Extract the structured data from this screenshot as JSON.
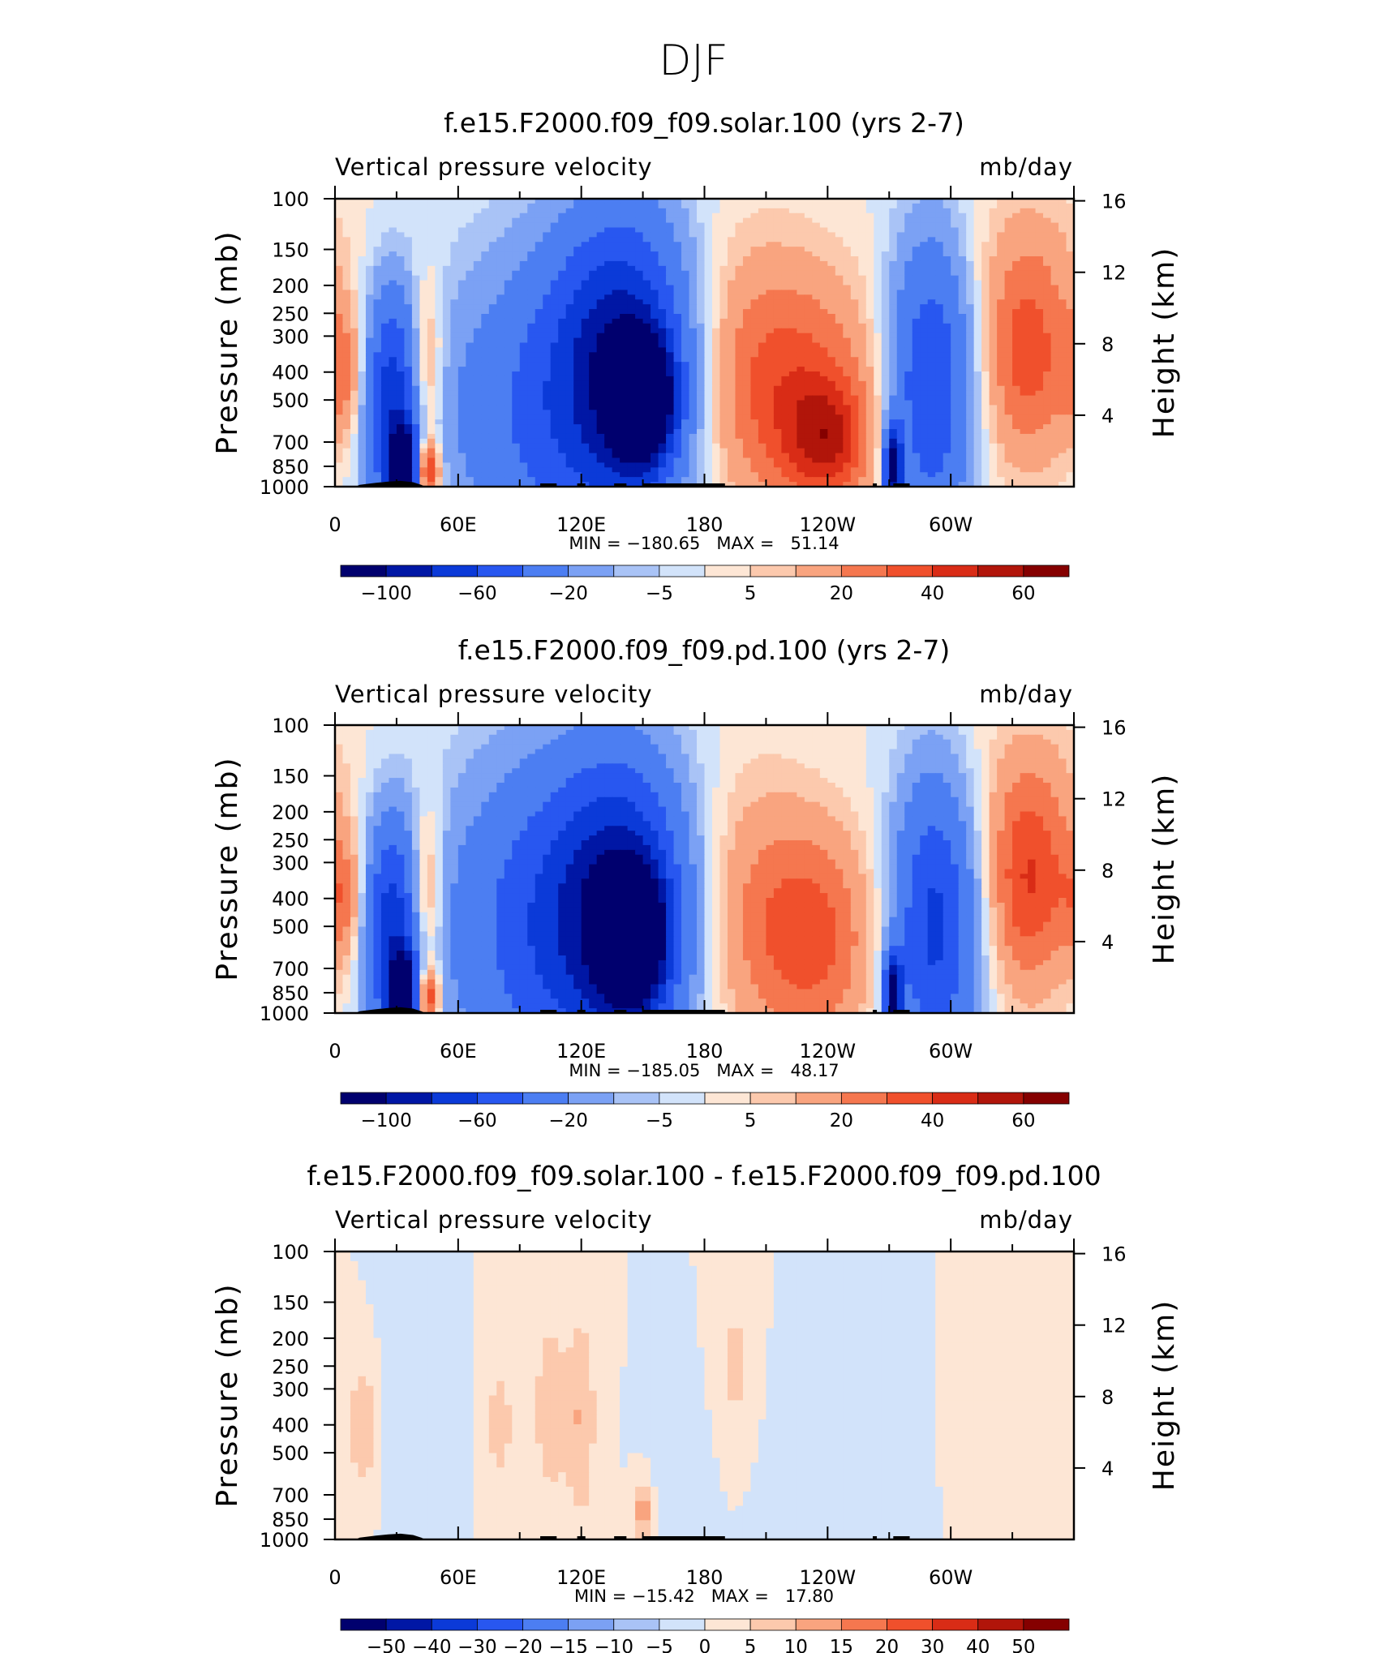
{
  "figure_title": "DJF",
  "chart_data": [
    {
      "type": "heatmap",
      "title": "f.e15.F2000.f09_f09.solar.100 (yrs 2-7)",
      "left_label": "Vertical pressure velocity",
      "right_label": "mb/day",
      "ylabel": "Pressure (mb)",
      "ylabel_right": "Height (km)",
      "x_ticks": [
        "0",
        "60E",
        "120E",
        "180",
        "120W",
        "60W"
      ],
      "y_ticks": [
        "100",
        "150",
        "200",
        "250",
        "300",
        "400",
        "500",
        "700",
        "850",
        "1000"
      ],
      "y2_ticks": [
        "16",
        "12",
        "8",
        "4"
      ],
      "stats": "MIN = −180.65   MAX =   51.14",
      "colorbar_labels": [
        "−100",
        "−60",
        "−20",
        "−5",
        "5",
        "20",
        "40",
        "60"
      ],
      "features": [
        {
          "lon": 5,
          "p": 400,
          "v": 25,
          "w": 8,
          "h": 0.35
        },
        {
          "lon": 28,
          "p": 500,
          "v": -70,
          "w": 10,
          "h": 0.55
        },
        {
          "lon": 33,
          "p": 850,
          "v": -120,
          "w": 5,
          "h": 0.2
        },
        {
          "lon": 44,
          "p": 400,
          "v": 30,
          "w": 6,
          "h": 0.45
        },
        {
          "lon": 45,
          "p": 880,
          "v": 55,
          "w": 4,
          "h": 0.15
        },
        {
          "lon": 60,
          "p": 500,
          "v": -4,
          "w": 10,
          "h": 0.6
        },
        {
          "lon": 100,
          "p": 550,
          "v": -40,
          "w": 30,
          "h": 0.8
        },
        {
          "lon": 140,
          "p": 380,
          "v": -90,
          "w": 22,
          "h": 0.75
        },
        {
          "lon": 150,
          "p": 500,
          "v": -130,
          "w": 10,
          "h": 0.3
        },
        {
          "lon": 200,
          "p": 400,
          "v": 15,
          "w": 20,
          "h": 0.7
        },
        {
          "lon": 230,
          "p": 450,
          "v": 30,
          "w": 25,
          "h": 0.6
        },
        {
          "lon": 240,
          "p": 700,
          "v": 35,
          "w": 15,
          "h": 0.3
        },
        {
          "lon": 290,
          "p": 450,
          "v": -60,
          "w": 14,
          "h": 0.75
        },
        {
          "lon": 272,
          "p": 850,
          "v": -110,
          "w": 3,
          "h": 0.2
        },
        {
          "lon": 337,
          "p": 350,
          "v": 35,
          "w": 15,
          "h": 0.55
        },
        {
          "lon": 340,
          "p": 150,
          "v": 6,
          "w": 25,
          "h": 0.4
        }
      ]
    },
    {
      "type": "heatmap",
      "title": "f.e15.F2000.f09_f09.pd.100 (yrs 2-7)",
      "left_label": "Vertical pressure velocity",
      "right_label": "mb/day",
      "ylabel": "Pressure (mb)",
      "ylabel_right": "Height (km)",
      "x_ticks": [
        "0",
        "60E",
        "120E",
        "180",
        "120W",
        "60W"
      ],
      "y_ticks": [
        "100",
        "150",
        "200",
        "250",
        "300",
        "400",
        "500",
        "700",
        "850",
        "1000"
      ],
      "y2_ticks": [
        "16",
        "12",
        "8",
        "4"
      ],
      "stats": "MIN = −185.05   MAX =   48.17",
      "colorbar_labels": [
        "−100",
        "−60",
        "−20",
        "−5",
        "5",
        "20",
        "40",
        "60"
      ],
      "features": [
        {
          "lon": 5,
          "p": 400,
          "v": 25,
          "w": 8,
          "h": 0.35
        },
        {
          "lon": 28,
          "p": 500,
          "v": -70,
          "w": 10,
          "h": 0.55
        },
        {
          "lon": 33,
          "p": 850,
          "v": -120,
          "w": 5,
          "h": 0.2
        },
        {
          "lon": 44,
          "p": 400,
          "v": 32,
          "w": 6,
          "h": 0.45
        },
        {
          "lon": 45,
          "p": 880,
          "v": 50,
          "w": 4,
          "h": 0.15
        },
        {
          "lon": 60,
          "p": 500,
          "v": -4,
          "w": 10,
          "h": 0.6
        },
        {
          "lon": 100,
          "p": 500,
          "v": -50,
          "w": 30,
          "h": 0.85
        },
        {
          "lon": 140,
          "p": 450,
          "v": -90,
          "w": 22,
          "h": 0.75
        },
        {
          "lon": 145,
          "p": 550,
          "v": -135,
          "w": 10,
          "h": 0.3
        },
        {
          "lon": 205,
          "p": 450,
          "v": 18,
          "w": 22,
          "h": 0.7
        },
        {
          "lon": 235,
          "p": 550,
          "v": 30,
          "w": 20,
          "h": 0.55
        },
        {
          "lon": 292,
          "p": 500,
          "v": -65,
          "w": 14,
          "h": 0.75
        },
        {
          "lon": 272,
          "p": 850,
          "v": -110,
          "w": 3,
          "h": 0.2
        },
        {
          "lon": 338,
          "p": 350,
          "v": 40,
          "w": 14,
          "h": 0.55
        },
        {
          "lon": 340,
          "p": 150,
          "v": 6,
          "w": 25,
          "h": 0.4
        }
      ]
    },
    {
      "type": "heatmap",
      "title": "f.e15.F2000.f09_f09.solar.100 - f.e15.F2000.f09_f09.pd.100",
      "left_label": "Vertical pressure velocity",
      "right_label": "mb/day",
      "ylabel": "Pressure (mb)",
      "ylabel_right": "Height (km)",
      "x_ticks": [
        "0",
        "60E",
        "120E",
        "180",
        "120W",
        "60W"
      ],
      "y_ticks": [
        "100",
        "150",
        "200",
        "250",
        "300",
        "400",
        "500",
        "700",
        "850",
        "1000"
      ],
      "y2_ticks": [
        "16",
        "12",
        "8",
        "4"
      ],
      "stats": "MIN = −15.42   MAX =   17.80",
      "colorbar_labels": [
        "−50",
        "−40",
        "−30",
        "−20",
        "−15",
        "−10",
        "−5",
        "0",
        "5",
        "10",
        "15",
        "20",
        "30",
        "40",
        "50"
      ],
      "features": [
        {
          "lon": 14,
          "p": 400,
          "v": 9,
          "w": 6,
          "h": 0.35
        },
        {
          "lon": 35,
          "p": 350,
          "v": -4,
          "w": 10,
          "h": 0.6
        },
        {
          "lon": 58,
          "p": 400,
          "v": -3,
          "w": 8,
          "h": 0.5
        },
        {
          "lon": 80,
          "p": 400,
          "v": 6,
          "w": 8,
          "h": 0.55
        },
        {
          "lon": 105,
          "p": 350,
          "v": 8,
          "w": 6,
          "h": 0.55
        },
        {
          "lon": 120,
          "p": 380,
          "v": 10,
          "w": 5,
          "h": 0.55
        },
        {
          "lon": 150,
          "p": 800,
          "v": 14,
          "w": 3,
          "h": 0.15
        },
        {
          "lon": 168,
          "p": 600,
          "v": -4,
          "w": 8,
          "h": 0.4
        },
        {
          "lon": 195,
          "p": 250,
          "v": 7,
          "w": 6,
          "h": 0.35
        },
        {
          "lon": 245,
          "p": 500,
          "v": -2,
          "w": 20,
          "h": 0.5
        },
        {
          "lon": 310,
          "p": 400,
          "v": 4,
          "w": 6,
          "h": 0.45
        },
        {
          "lon": 340,
          "p": 500,
          "v": 3,
          "w": 12,
          "h": 0.6
        }
      ]
    }
  ]
}
